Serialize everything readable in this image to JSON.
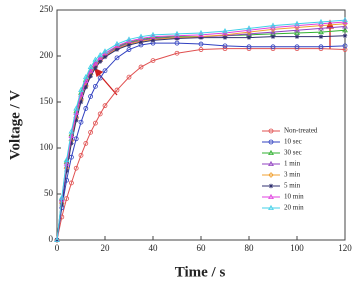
{
  "chart_data": {
    "type": "line",
    "x_label": "Time / s",
    "y_label": "Voltage / V",
    "x": [
      0,
      2,
      4,
      6,
      8,
      10,
      12,
      14,
      16,
      18,
      20,
      25,
      30,
      35,
      40,
      50,
      60,
      70,
      80,
      90,
      100,
      110,
      120
    ],
    "series": [
      {
        "name": "Non-treated",
        "color": "#e05050",
        "marker": "circle",
        "values": [
          0,
          25,
          45,
          62,
          78,
          92,
          105,
          117,
          127,
          137,
          146,
          163,
          177,
          188,
          195,
          203,
          207,
          208,
          208,
          208,
          208,
          208,
          207
        ]
      },
      {
        "name": "10 sec",
        "color": "#3040c0",
        "marker": "circle",
        "values": [
          0,
          35,
          65,
          90,
          110,
          128,
          143,
          156,
          167,
          176,
          184,
          198,
          207,
          212,
          214,
          214,
          213,
          211,
          210,
          210,
          210,
          210,
          211
        ]
      },
      {
        "name": "30 sec",
        "color": "#30b030",
        "marker": "triangle",
        "values": [
          0,
          45,
          85,
          115,
          140,
          160,
          174,
          185,
          193,
          198,
          203,
          210,
          215,
          218,
          220,
          221,
          221,
          222,
          223,
          224,
          225,
          226,
          228
        ]
      },
      {
        "name": "1 min",
        "color": "#9040c0",
        "marker": "triangle",
        "values": [
          0,
          42,
          80,
          110,
          135,
          155,
          170,
          182,
          190,
          196,
          201,
          209,
          214,
          217,
          219,
          220,
          221,
          222,
          224,
          226,
          228,
          230,
          232
        ]
      },
      {
        "name": "3 min",
        "color": "#f0a030",
        "marker": "diamond",
        "values": [
          0,
          40,
          78,
          108,
          132,
          152,
          167,
          180,
          189,
          195,
          200,
          208,
          213,
          216,
          218,
          220,
          221,
          223,
          226,
          229,
          231,
          233,
          235
        ]
      },
      {
        "name": "5 min",
        "color": "#303070",
        "marker": "star",
        "values": [
          0,
          38,
          75,
          105,
          130,
          150,
          166,
          178,
          187,
          194,
          199,
          207,
          212,
          215,
          217,
          219,
          220,
          220,
          220,
          221,
          221,
          221,
          222
        ]
      },
      {
        "name": "10 min",
        "color": "#e040e0",
        "marker": "triangle",
        "values": [
          0,
          44,
          83,
          113,
          138,
          158,
          173,
          184,
          192,
          198,
          203,
          211,
          216,
          219,
          221,
          222,
          223,
          225,
          228,
          231,
          233,
          235,
          237
        ]
      },
      {
        "name": "20 min",
        "color": "#40d0e8",
        "marker": "triangle",
        "values": [
          0,
          46,
          87,
          118,
          143,
          163,
          177,
          188,
          196,
          201,
          205,
          213,
          218,
          221,
          223,
          224,
          225,
          227,
          230,
          233,
          235,
          237,
          239
        ]
      }
    ],
    "xlim": [
      0,
      120
    ],
    "xticks": [
      0,
      20,
      40,
      60,
      80,
      100,
      120
    ],
    "ylim": [
      0,
      250
    ],
    "yticks": [
      0,
      50,
      100,
      150,
      200,
      250
    ]
  }
}
